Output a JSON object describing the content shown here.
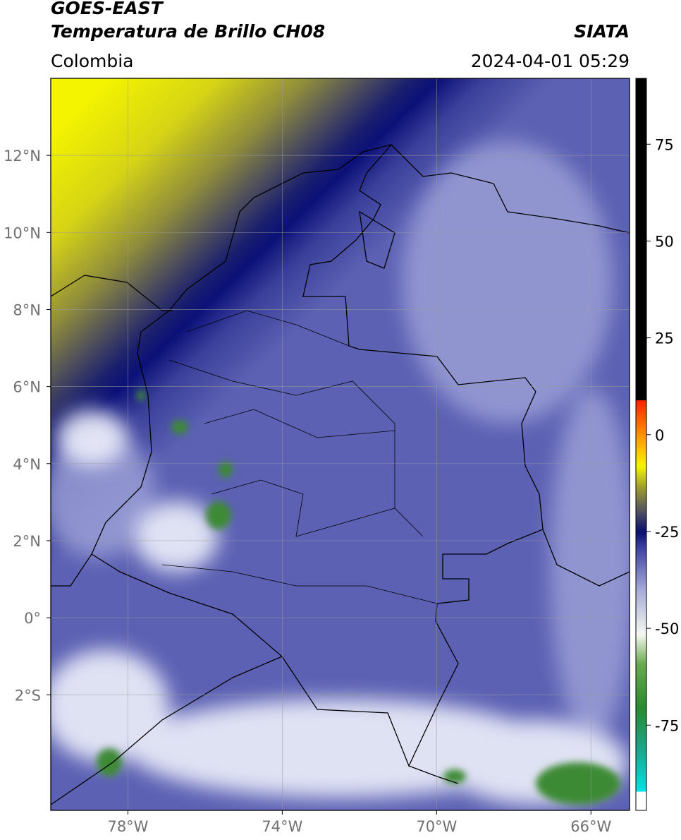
{
  "header": {
    "title": "GOES-EAST",
    "subtitle": "Temperatura de Brillo CH08",
    "source": "SIATA",
    "region": "Colombia",
    "timestamp": "2024-04-01 05:29"
  },
  "map": {
    "xlim": [
      -80,
      -65
    ],
    "ylim": [
      -5,
      14
    ],
    "xticks": [
      {
        "value": -78,
        "label": "78°W"
      },
      {
        "value": -74,
        "label": "74°W"
      },
      {
        "value": -70,
        "label": "70°W"
      },
      {
        "value": -66,
        "label": "66°W"
      }
    ],
    "yticks": [
      {
        "value": 12,
        "label": "12°N"
      },
      {
        "value": 10,
        "label": "10°N"
      },
      {
        "value": 8,
        "label": "8°N"
      },
      {
        "value": 6,
        "label": "6°N"
      },
      {
        "value": 4,
        "label": "4°N"
      },
      {
        "value": 2,
        "label": "2°N"
      },
      {
        "value": 0,
        "label": "0°"
      },
      {
        "value": -2,
        "label": "2°S"
      }
    ],
    "grid": true
  },
  "colorbar": {
    "clim": [
      -97,
      92
    ],
    "ticks": [
      75,
      50,
      25,
      0,
      -25,
      -50,
      -75
    ]
  }
}
